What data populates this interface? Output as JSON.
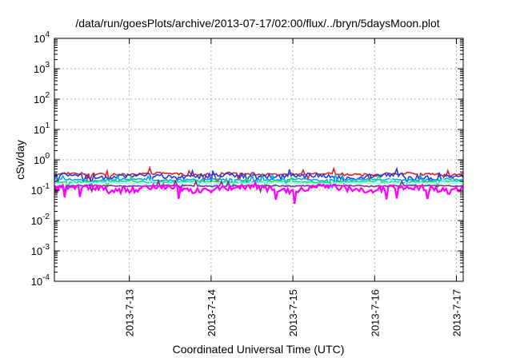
{
  "chart_data": {
    "type": "line",
    "title": "/data/run/goesPlots/archive/2013-07-17/02:00/flux/../bryn/5daysMoon.plot",
    "xlabel": "Coordinated Universal Time (UTC)",
    "ylabel": "cSv/day",
    "yscale": "log",
    "ylim": [
      0.0001,
      10000
    ],
    "xlim": [
      "2013-07-12 02:00",
      "2013-07-17 02:00"
    ],
    "grid": true,
    "x_tick_labels": [
      "2013-7-13",
      "2013-7-14",
      "2013-7-15",
      "2013-7-16",
      "2013-7-17"
    ],
    "y_ticks": [
      {
        "value": 0.0001,
        "base": "10",
        "exp": "-4"
      },
      {
        "value": 0.001,
        "base": "10",
        "exp": "-3"
      },
      {
        "value": 0.01,
        "base": "10",
        "exp": "-2"
      },
      {
        "value": 0.1,
        "base": "10",
        "exp": "-1"
      },
      {
        "value": 1,
        "base": "10",
        "exp": "0"
      },
      {
        "value": 10,
        "base": "10",
        "exp": "1"
      },
      {
        "value": 100,
        "base": "10",
        "exp": "2"
      },
      {
        "value": 1000,
        "base": "10",
        "exp": "3"
      },
      {
        "value": 10000,
        "base": "10",
        "exp": "4"
      }
    ],
    "series": [
      {
        "color": "#dd2222",
        "base": 0.34,
        "spread": 0.12
      },
      {
        "color": "#1f3fe0",
        "base": 0.29,
        "spread": 0.22
      },
      {
        "color": "#00aaee",
        "base": 0.22,
        "spread": 0.1
      },
      {
        "color": "#20dd60",
        "base": 0.19,
        "spread": 0.07
      },
      {
        "color": "#88ffff",
        "base": 0.17,
        "spread": 0.06
      },
      {
        "color": "#8a2b8a",
        "base": 0.14,
        "spread": 0.05
      },
      {
        "color": "#ff00ff",
        "base": 0.115,
        "spread": 0.28
      }
    ]
  }
}
